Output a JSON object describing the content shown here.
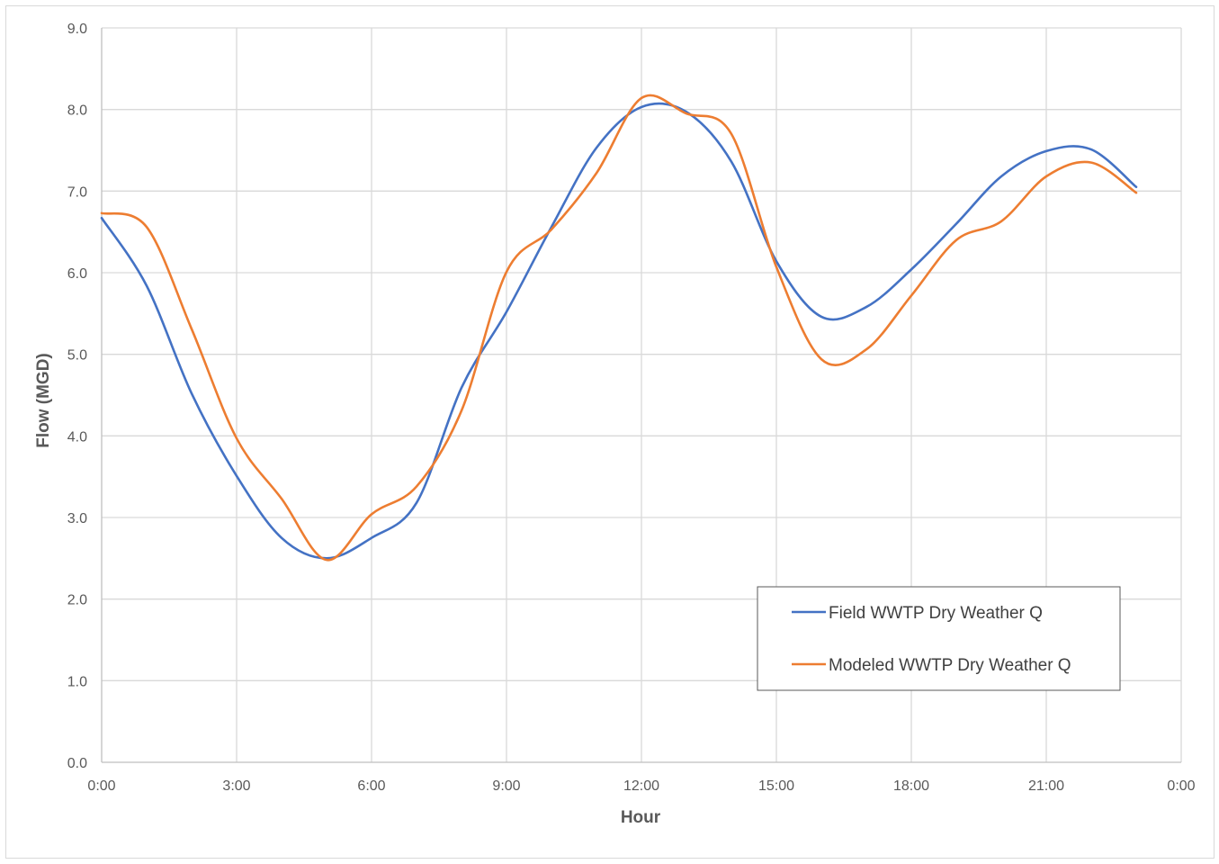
{
  "chart_data": {
    "type": "line",
    "title": "",
    "xlabel": "Hour",
    "ylabel": "Flow (MGD)",
    "x_unit": "hour of day",
    "xlim": [
      0,
      24
    ],
    "ylim": [
      0,
      9
    ],
    "x_ticks": [
      {
        "value": 0,
        "label": "0:00"
      },
      {
        "value": 3,
        "label": "3:00"
      },
      {
        "value": 6,
        "label": "6:00"
      },
      {
        "value": 9,
        "label": "9:00"
      },
      {
        "value": 12,
        "label": "12:00"
      },
      {
        "value": 15,
        "label": "15:00"
      },
      {
        "value": 18,
        "label": "18:00"
      },
      {
        "value": 21,
        "label": "21:00"
      },
      {
        "value": 24,
        "label": "0:00"
      }
    ],
    "y_ticks": [
      {
        "value": 0,
        "label": "0.0"
      },
      {
        "value": 1,
        "label": "1.0"
      },
      {
        "value": 2,
        "label": "2.0"
      },
      {
        "value": 3,
        "label": "3.0"
      },
      {
        "value": 4,
        "label": "4.0"
      },
      {
        "value": 5,
        "label": "5.0"
      },
      {
        "value": 6,
        "label": "6.0"
      },
      {
        "value": 7,
        "label": "7.0"
      },
      {
        "value": 8,
        "label": "8.0"
      },
      {
        "value": 9,
        "label": "9.0"
      }
    ],
    "grid": true,
    "smooth": true,
    "legend_position": "lower-right",
    "x": [
      0,
      1,
      2,
      3,
      4,
      5,
      6,
      7,
      8,
      9,
      10,
      11,
      12,
      13,
      14,
      15,
      16,
      17,
      18,
      19,
      20,
      21,
      22,
      23
    ],
    "series": [
      {
        "name": "Field WWTP Dry Weather Q",
        "color": "#4472c4",
        "values": [
          6.67,
          5.84,
          4.52,
          3.51,
          2.75,
          2.5,
          2.75,
          3.18,
          4.59,
          5.52,
          6.56,
          7.53,
          8.03,
          7.97,
          7.36,
          6.14,
          5.46,
          5.58,
          6.04,
          6.6,
          7.18,
          7.49,
          7.51,
          7.05
        ]
      },
      {
        "name": "Modeled WWTP Dry Weather Q",
        "color": "#ed7d31",
        "values": [
          6.73,
          6.56,
          5.31,
          3.97,
          3.23,
          2.48,
          3.04,
          3.38,
          4.31,
          6.01,
          6.53,
          7.22,
          8.14,
          7.95,
          7.7,
          6.07,
          4.94,
          5.06,
          5.72,
          6.4,
          6.63,
          7.18,
          7.35,
          6.98
        ]
      }
    ]
  }
}
